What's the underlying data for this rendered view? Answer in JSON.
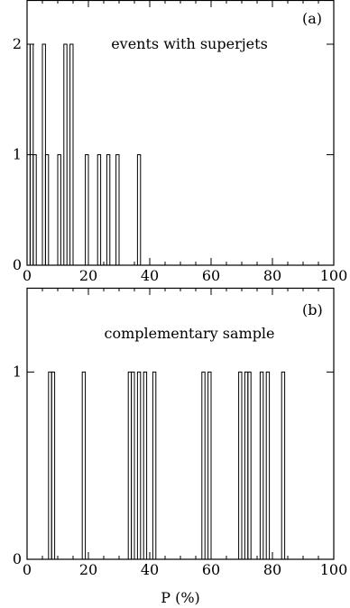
{
  "chart_data": [
    {
      "type": "bar",
      "panel_label": "(a)",
      "caption": "events with superjets",
      "xlim": [
        0,
        100
      ],
      "ylim": [
        0,
        2.4
      ],
      "xticks": [
        "0",
        "20",
        "40",
        "60",
        "80",
        "100"
      ],
      "yticks": [
        "0",
        "1",
        "2"
      ],
      "bin_width": 1,
      "bins": [
        {
          "x": 0,
          "y": 2
        },
        {
          "x": 1,
          "y": 2
        },
        {
          "x": 2,
          "y": 1
        },
        {
          "x": 5,
          "y": 2
        },
        {
          "x": 6,
          "y": 1
        },
        {
          "x": 10,
          "y": 1
        },
        {
          "x": 12,
          "y": 2
        },
        {
          "x": 14,
          "y": 2
        },
        {
          "x": 19,
          "y": 1
        },
        {
          "x": 23,
          "y": 1
        },
        {
          "x": 26,
          "y": 1
        },
        {
          "x": 29,
          "y": 1
        },
        {
          "x": 36,
          "y": 1
        }
      ]
    },
    {
      "type": "bar",
      "panel_label": "(b)",
      "caption": "complementary sample",
      "xlabel": "P (%)",
      "xlim": [
        0,
        100
      ],
      "ylim": [
        0,
        1.45
      ],
      "xticks": [
        "0",
        "20",
        "40",
        "60",
        "80",
        "100"
      ],
      "yticks": [
        "0",
        "1"
      ],
      "bin_width": 1,
      "bins": [
        {
          "x": 7,
          "y": 1
        },
        {
          "x": 8,
          "y": 1
        },
        {
          "x": 18,
          "y": 1
        },
        {
          "x": 33,
          "y": 1
        },
        {
          "x": 34,
          "y": 1
        },
        {
          "x": 36,
          "y": 1
        },
        {
          "x": 38,
          "y": 1
        },
        {
          "x": 41,
          "y": 1
        },
        {
          "x": 57,
          "y": 1
        },
        {
          "x": 59,
          "y": 1
        },
        {
          "x": 69,
          "y": 1
        },
        {
          "x": 71,
          "y": 1
        },
        {
          "x": 72,
          "y": 1
        },
        {
          "x": 76,
          "y": 1
        },
        {
          "x": 78,
          "y": 1
        },
        {
          "x": 83,
          "y": 1
        }
      ]
    }
  ]
}
